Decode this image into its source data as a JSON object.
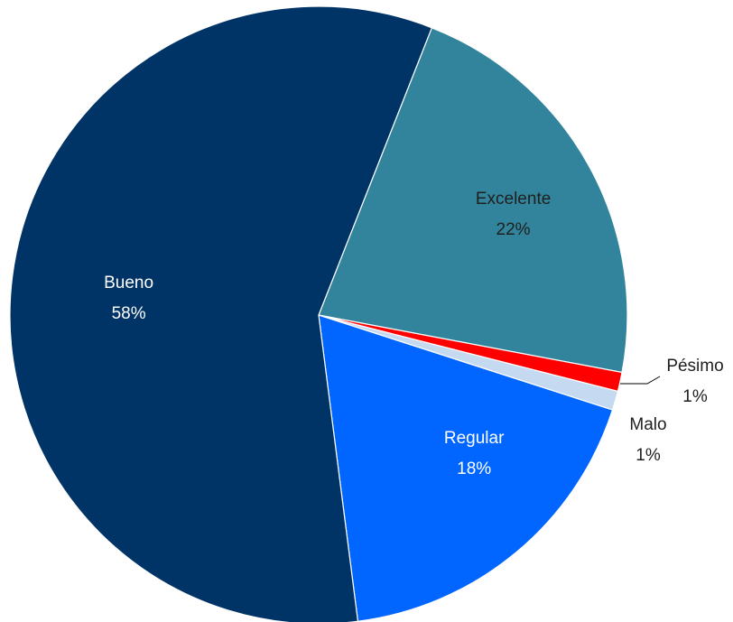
{
  "chart_data": {
    "type": "pie",
    "title": "",
    "slices": [
      {
        "label": "Excelente",
        "value": 22,
        "display": "22%",
        "color": "#31849b",
        "label_color": "#1f1f1f"
      },
      {
        "label": "Pésimo",
        "value": 1,
        "display": "1%",
        "color": "#ff0000",
        "label_color": "#1f1f1f"
      },
      {
        "label": "Malo",
        "value": 1,
        "display": "1%",
        "color": "#c5d9f1",
        "label_color": "#1f1f1f"
      },
      {
        "label": "Regular",
        "value": 18,
        "display": "18%",
        "color": "#0066ff",
        "label_color": "#ffffff"
      },
      {
        "label": "Bueno",
        "value": 58,
        "display": "58%",
        "color": "#003366",
        "label_color": "#ffffff"
      }
    ],
    "legend": "none",
    "data_labels": "category and percentage"
  }
}
